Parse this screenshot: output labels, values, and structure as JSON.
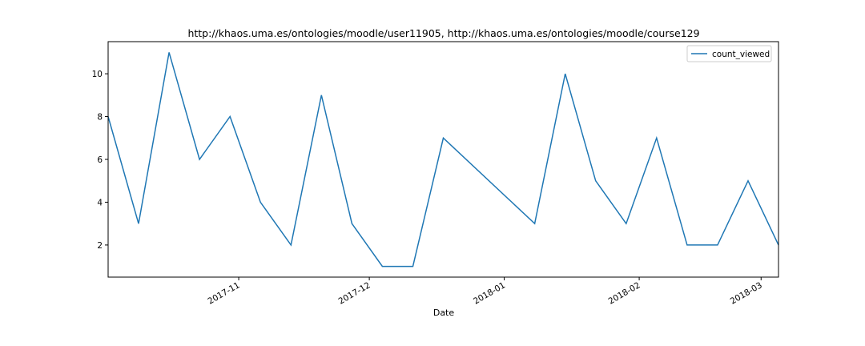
{
  "chart_data": {
    "type": "line",
    "title": "http://khaos.uma.es/ontologies/moodle/user11905, http://khaos.uma.es/ontologies/moodle/course129",
    "xlabel": "Date",
    "ylabel": "",
    "x_ticks": [
      {
        "label": "2017-11",
        "date": "2017-11-01"
      },
      {
        "label": "2017-12",
        "date": "2017-12-01"
      },
      {
        "label": "2018-01",
        "date": "2018-01-01"
      },
      {
        "label": "2018-02",
        "date": "2018-02-01"
      },
      {
        "label": "2018-03",
        "date": "2018-03-01"
      }
    ],
    "y_ticks": [
      2,
      4,
      6,
      8,
      10
    ],
    "ylim": [
      0.5,
      11.5
    ],
    "xlim": [
      "2017-10-02",
      "2018-03-05"
    ],
    "grid": false,
    "legend": {
      "position": "top-right"
    },
    "series": [
      {
        "name": "count_viewed",
        "color": "#1f77b4",
        "x": [
          "2017-10-02",
          "2017-10-09",
          "2017-10-16",
          "2017-10-23",
          "2017-10-30",
          "2017-11-06",
          "2017-11-13",
          "2017-11-20",
          "2017-11-27",
          "2017-12-04",
          "2017-12-11",
          "2017-12-18",
          "2018-01-08",
          "2018-01-15",
          "2018-01-22",
          "2018-01-29",
          "2018-02-05",
          "2018-02-12",
          "2018-02-19",
          "2018-02-26",
          "2018-03-05"
        ],
        "values": [
          8,
          3,
          11,
          6,
          8,
          4,
          2,
          9,
          3,
          1,
          1,
          7,
          3,
          10,
          5,
          3,
          7,
          2,
          2,
          5,
          2
        ]
      }
    ]
  }
}
